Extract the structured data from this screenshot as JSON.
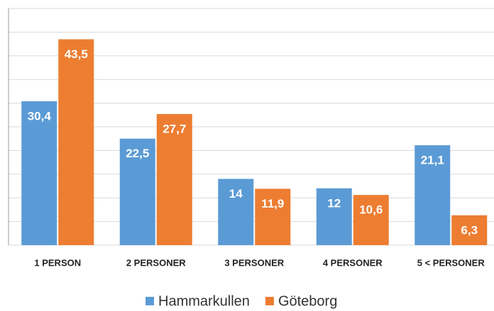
{
  "chart_data": {
    "type": "bar",
    "categories": [
      "1 PERSON",
      "2 PERSONER",
      "3 PERSONER",
      "4 PERSONER",
      "5 < PERSONER"
    ],
    "series": [
      {
        "name": "Hammarkullen",
        "color": "#5b9bd5",
        "values": [
          30.4,
          22.5,
          14,
          12,
          21.1
        ],
        "value_labels": [
          "30,4",
          "22,5",
          "14",
          "12",
          "21,1"
        ]
      },
      {
        "name": "Göteborg",
        "color": "#ed7d31",
        "values": [
          43.5,
          27.7,
          11.9,
          10.6,
          6.3
        ],
        "value_labels": [
          "43,5",
          "27,7",
          "11,9",
          "10,6",
          "6,3"
        ]
      }
    ],
    "ylim": [
      0,
      50
    ],
    "yticks": [
      0,
      5,
      10,
      15,
      20,
      25,
      30,
      35,
      40,
      45,
      50
    ],
    "grid": true,
    "legend": "bottom"
  }
}
